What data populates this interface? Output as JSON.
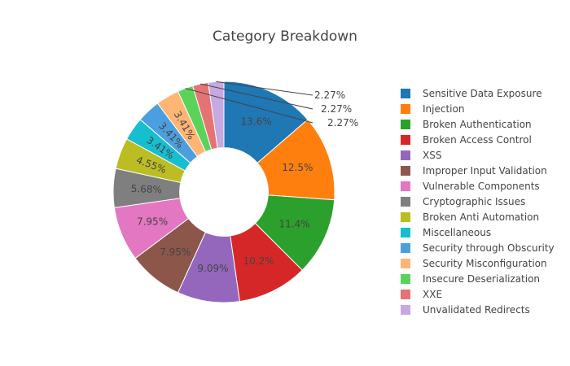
{
  "chart_data": {
    "type": "pie",
    "hole": 0.4,
    "title": "Category Breakdown",
    "legend_position": "right",
    "text_info": "percent",
    "categories": [
      "Sensitive Data Exposure",
      "Injection",
      "Broken Authentication",
      "Broken Access Control",
      "XSS",
      "Improper Input Validation",
      "Vulnerable Components",
      "Cryptographic Issues",
      "Broken Anti Automation",
      "Miscellaneous",
      "Security through Obscurity",
      "Security Misconfiguration",
      "Insecure Deserialization",
      "XXE",
      "Unvalidated Redirects"
    ],
    "values": [
      12,
      11,
      10,
      9,
      8,
      7,
      7,
      5,
      4,
      3,
      3,
      3,
      2,
      2,
      2
    ],
    "percent_labels": [
      "13.6%",
      "12.5%",
      "11.4%",
      "10.2%",
      "9.09%",
      "7.95%",
      "7.95%",
      "5.68%",
      "4.55%",
      "3.41%",
      "3.41%",
      "3.41%",
      "2.27%",
      "2.27%",
      "2.27%"
    ],
    "colors": [
      "#1f77b4",
      "#ff7f0e",
      "#2ca02c",
      "#d62728",
      "#9467bd",
      "#8c564b",
      "#e377c2",
      "#7f7f7f",
      "#bcbd22",
      "#17becf",
      "#4c9fde",
      "#ffb574",
      "#5bd35b",
      "#e57373",
      "#c6a9e0"
    ]
  }
}
